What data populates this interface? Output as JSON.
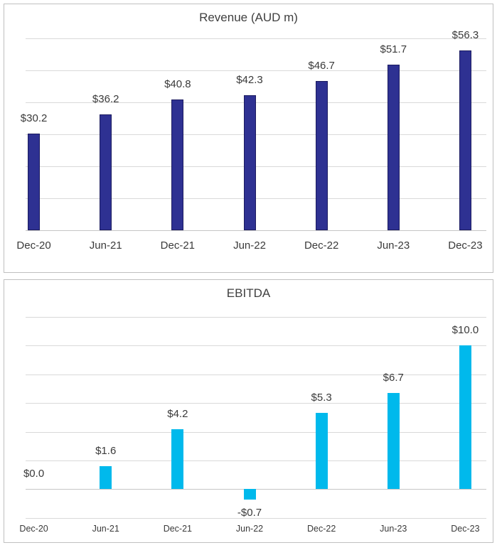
{
  "page": {
    "background": "#ffffff"
  },
  "chart_data": [
    {
      "type": "bar",
      "title": "Revenue (AUD m)",
      "categories": [
        "Dec-20",
        "Jun-21",
        "Dec-21",
        "Jun-22",
        "Dec-22",
        "Jun-23",
        "Dec-23"
      ],
      "values": [
        30.2,
        36.2,
        40.8,
        42.3,
        46.7,
        51.7,
        56.3
      ],
      "value_labels": [
        "$30.2",
        "$36.2",
        "$40.8",
        "$42.3",
        "$46.7",
        "$51.7",
        "$56.3"
      ],
      "ylim": [
        0,
        60
      ],
      "grid_step": 10,
      "grid": true,
      "legend": false,
      "bar_color": "#2e3192",
      "bar_border_color": "#1b1b60"
    },
    {
      "type": "bar",
      "title": "EBITDA",
      "categories": [
        "Dec-20",
        "Jun-21",
        "Dec-21",
        "Jun-22",
        "Dec-22",
        "Jun-23",
        "Dec-23"
      ],
      "values": [
        0.0,
        1.6,
        4.2,
        -0.7,
        5.3,
        6.7,
        10.0
      ],
      "value_labels": [
        "$0.0",
        "$1.6",
        "$4.2",
        "-$0.7",
        "$5.3",
        "$6.7",
        "$10.0"
      ],
      "ylim": [
        -2,
        12
      ],
      "grid_step": 2,
      "grid": true,
      "legend": false,
      "bar_color": "#00b9ec",
      "bar_border_color": null
    }
  ],
  "colors": {
    "grid_line": "#d9d9d9",
    "zero_axis_line": "#c6c6c6",
    "title_text": "#404040",
    "label_text": "#3a3a3a",
    "panel_border": "#c0c0c0",
    "revenue_bar": "#2e3192",
    "ebitda_bar": "#00b9ec"
  }
}
